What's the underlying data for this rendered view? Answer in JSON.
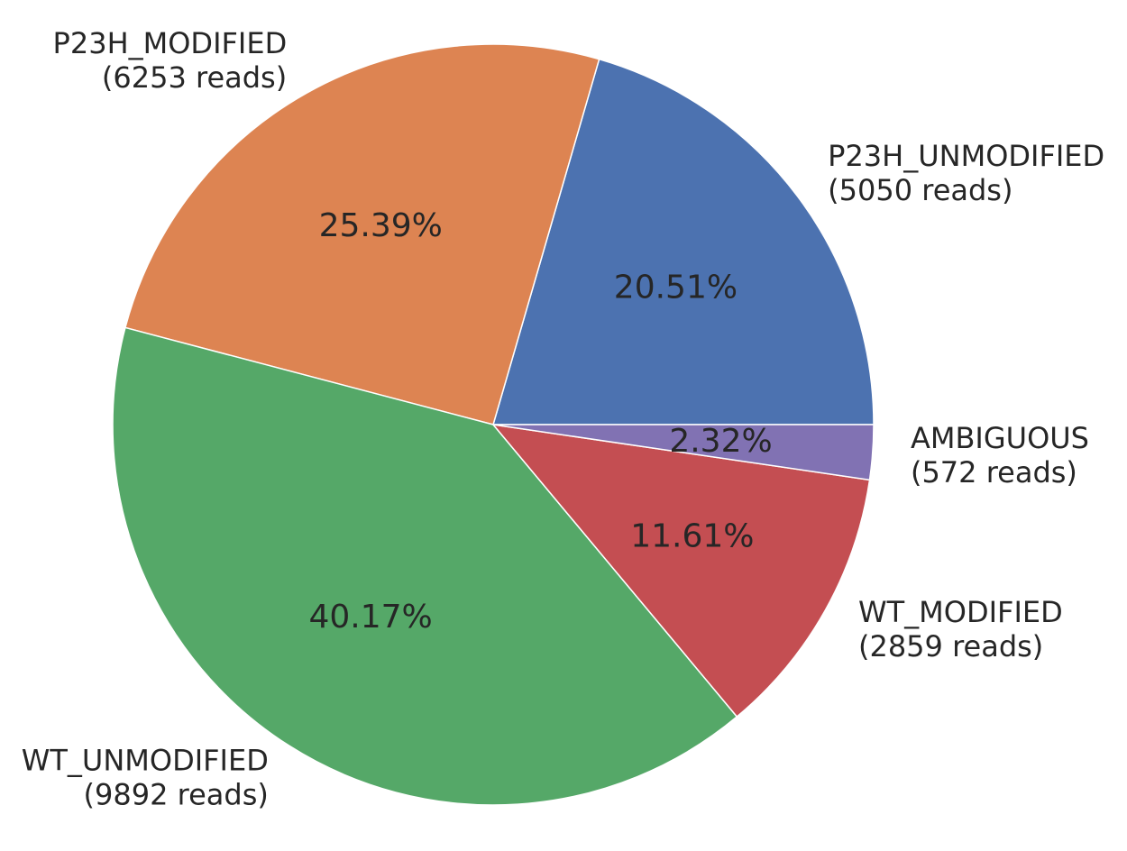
{
  "chart_data": {
    "type": "pie",
    "title": "",
    "start_angle_deg": 0,
    "direction": "counterclockwise",
    "categories": [
      "P23H_UNMODIFIED",
      "P23H_MODIFIED",
      "WT_UNMODIFIED",
      "WT_MODIFIED",
      "AMBIGUOUS"
    ],
    "values": [
      5050,
      6253,
      9892,
      2859,
      572
    ],
    "count_labels": [
      "(5050 reads)",
      "(6253 reads)",
      "(9892 reads)",
      "(2859 reads)",
      "(572 reads)"
    ],
    "percent_labels": [
      "20.51%",
      "25.39%",
      "40.17%",
      "11.61%",
      "2.32%"
    ],
    "colors": [
      "#4c72b0",
      "#dd8452",
      "#55a868",
      "#c44e52",
      "#8172b3"
    ]
  }
}
